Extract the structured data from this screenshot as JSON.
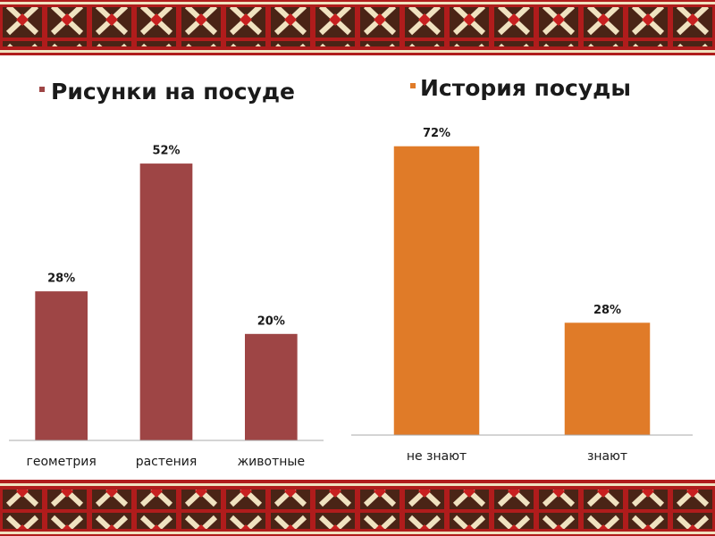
{
  "chart_data": [
    {
      "type": "bar",
      "title": "Рисунки на посуде",
      "categories": [
        "геометрия",
        "растения",
        "животные"
      ],
      "values": [
        28,
        52,
        20
      ],
      "value_labels": [
        "28%",
        "52%",
        "20%"
      ],
      "color": "#9e4545"
    },
    {
      "type": "bar",
      "title": "История посуды",
      "categories": [
        "не знают",
        "знают"
      ],
      "values": [
        72,
        28
      ],
      "value_labels": [
        "72%",
        "28%"
      ],
      "color": "#e07b28"
    }
  ]
}
